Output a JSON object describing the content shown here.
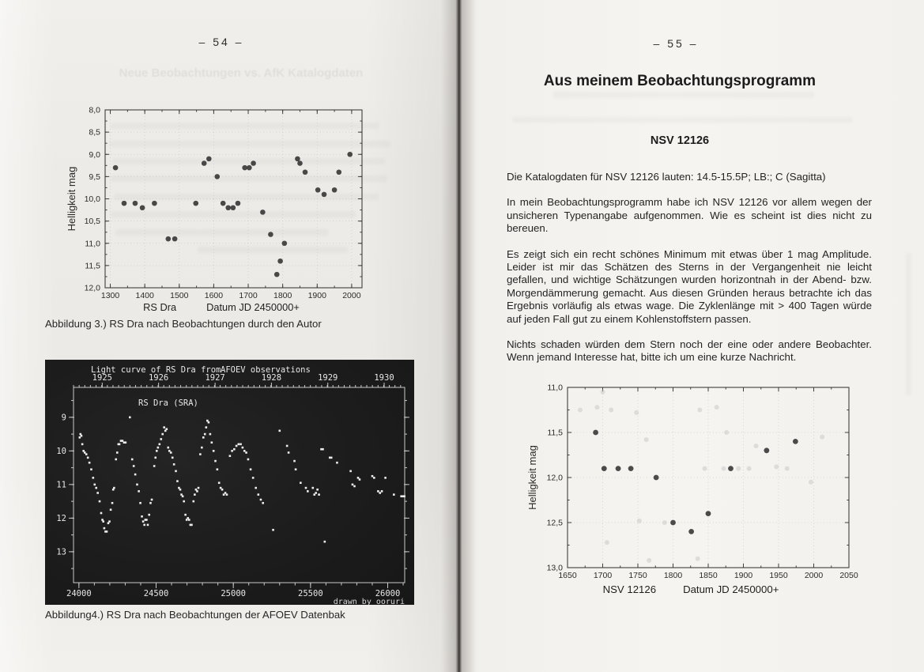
{
  "scan": {
    "paper_left_color": "#edebe7",
    "paper_right_color": "#f4f2ee",
    "ink_color": "#262626",
    "dark_chart_bg": "#1c1c1c"
  },
  "document": {
    "left_page": {
      "page_number": "– 54 –",
      "ghost_heading": "Neue Beobachtungen vs. AfK Katalogdaten",
      "figure3_caption": "Abbildung 3.) RS Dra nach Beobachtungen durch den Autor",
      "figure4_caption": "Abbildung4.) RS Dra nach Beobachtungen der AFOEV Datenbak"
    },
    "right_page": {
      "page_number": "– 55 –",
      "title": "Aus meinem Beobachtungsprogramm",
      "subtitle": "NSV 12126",
      "paragraphs": [
        "Die Katalogdaten für NSV 12126 lauten: 14.5-15.5P; LB:; C (Sagitta)",
        "In mein Beobachtungsprogramm habe ich NSV 12126 vor allem wegen der unsicheren Typenangabe aufgenommen. Wie es scheint ist dies nicht zu bereuen.",
        "Es zeigt sich ein recht schönes Minimum mit etwas über 1 mag Amplitude. Leider ist mir das Schätzen des Sterns in der Vergangenheit nie leicht gefallen, und wichtige Schätzungen wurden horizontnah in der Abend- bzw. Morgendämmerung gemacht. Aus diesen Gründen heraus betrachte ich das Ergebnis vorläufig als etwas wage. Die Zyklenlänge mit > 400 Tagen würde auf jeden Fall gut zu einem Kohlenstoffstern passen.",
        "Nichts schaden würden dem Stern noch der eine oder andere Beobachter. Wenn jemand Interesse hat, bitte ich um eine kurze Nachricht."
      ]
    }
  },
  "chart_data": [
    {
      "id": "fig3",
      "type": "scatter",
      "star": "RS Dra",
      "xlabel_left": "RS Dra",
      "xlabel_right": "Datum JD 2450000+",
      "ylabel": "Helligkeit mag",
      "xlim": [
        1285,
        2030
      ],
      "ylim": [
        8.0,
        12.0
      ],
      "y_inverted": true,
      "grid": "dotted",
      "xticks": [
        1300,
        1400,
        1500,
        1600,
        1700,
        1800,
        1900,
        2000
      ],
      "xtick_labels": [
        "1300",
        "1400",
        "1500",
        "1600",
        "1700",
        "1800",
        "1900",
        "2000"
      ],
      "yticks": [
        8.0,
        8.5,
        9.0,
        9.5,
        10.0,
        10.5,
        11.0,
        11.5,
        12.0
      ],
      "ytick_labels": [
        "8,0",
        "8,5",
        "9,0",
        "9,5",
        "10,0",
        "10,5",
        "11,0",
        "11,5",
        "12,0"
      ],
      "point_color": "#3a3a3a",
      "points": [
        [
          1315,
          9.3
        ],
        [
          1340,
          10.1
        ],
        [
          1372,
          10.1
        ],
        [
          1393,
          10.2
        ],
        [
          1428,
          10.1
        ],
        [
          1468,
          10.9
        ],
        [
          1487,
          10.9
        ],
        [
          1548,
          10.1
        ],
        [
          1572,
          9.2
        ],
        [
          1586,
          9.1
        ],
        [
          1610,
          9.5
        ],
        [
          1627,
          10.1
        ],
        [
          1642,
          10.2
        ],
        [
          1656,
          10.2
        ],
        [
          1670,
          10.1
        ],
        [
          1690,
          9.3
        ],
        [
          1703,
          9.3
        ],
        [
          1715,
          9.2
        ],
        [
          1742,
          10.3
        ],
        [
          1765,
          10.8
        ],
        [
          1783,
          11.7
        ],
        [
          1793,
          11.4
        ],
        [
          1805,
          11.0
        ],
        [
          1843,
          9.1
        ],
        [
          1850,
          9.2
        ],
        [
          1865,
          9.4
        ],
        [
          1902,
          9.8
        ],
        [
          1920,
          9.9
        ],
        [
          1950,
          9.8
        ],
        [
          1963,
          9.4
        ],
        [
          1995,
          9.0
        ]
      ]
    },
    {
      "id": "fig4",
      "type": "scatter",
      "theme": "dark",
      "title_parts": [
        "Light curve of RS Dra from",
        "AFOEV observations"
      ],
      "series_label": "RS Dra (SRA)",
      "credit": "drawn by ooruri",
      "xlim": [
        23965,
        26110
      ],
      "ylim": [
        8.11,
        13.92
      ],
      "y_inverted": true,
      "top_axis_years": [
        {
          "label": "1925",
          "jd": 24151
        },
        {
          "label": "1926",
          "jd": 24516
        },
        {
          "label": "1927",
          "jd": 24882
        },
        {
          "label": "1928",
          "jd": 25247
        },
        {
          "label": "1929",
          "jd": 25612
        },
        {
          "label": "1930",
          "jd": 25977
        }
      ],
      "xticks": [
        24000,
        24500,
        25000,
        25500,
        26000
      ],
      "xtick_labels": [
        "24000",
        "24500",
        "25000",
        "25500",
        "26000"
      ],
      "yticks": [
        9,
        10,
        11,
        12,
        13
      ],
      "ytick_labels": [
        "9",
        "10",
        "11",
        "12",
        "13"
      ],
      "point_color": "#ededed",
      "points": [
        [
          24005,
          9.6
        ],
        [
          24010,
          9.5
        ],
        [
          24016,
          9.55
        ],
        [
          24022,
          9.8
        ],
        [
          24030,
          10.0
        ],
        [
          24038,
          10.05
        ],
        [
          24048,
          10.1
        ],
        [
          24058,
          10.2
        ],
        [
          24068,
          10.35
        ],
        [
          24080,
          10.55
        ],
        [
          24092,
          10.8
        ],
        [
          24102,
          11.0
        ],
        [
          24112,
          11.1
        ],
        [
          24122,
          11.25
        ],
        [
          24134,
          11.5
        ],
        [
          24144,
          11.85
        ],
        [
          24152,
          12.05
        ],
        [
          24158,
          12.1
        ],
        [
          24164,
          12.3
        ],
        [
          24172,
          12.4
        ],
        [
          24180,
          12.4
        ],
        [
          24190,
          12.15
        ],
        [
          24198,
          12.1
        ],
        [
          24206,
          11.75
        ],
        [
          24216,
          11.55
        ],
        [
          24222,
          11.15
        ],
        [
          24228,
          11.1
        ],
        [
          24240,
          10.25
        ],
        [
          24248,
          10.05
        ],
        [
          24256,
          9.8
        ],
        [
          24262,
          9.8
        ],
        [
          24272,
          9.7
        ],
        [
          24282,
          9.7
        ],
        [
          24292,
          9.75
        ],
        [
          24302,
          9.75
        ],
        [
          24330,
          9.0
        ],
        [
          24345,
          10.25
        ],
        [
          24355,
          10.45
        ],
        [
          24365,
          10.7
        ],
        [
          24377,
          11.0
        ],
        [
          24388,
          11.2
        ],
        [
          24398,
          11.55
        ],
        [
          24408,
          11.95
        ],
        [
          24416,
          12.1
        ],
        [
          24424,
          12.2
        ],
        [
          24430,
          12.05
        ],
        [
          24438,
          12.05
        ],
        [
          24446,
          12.2
        ],
        [
          24455,
          11.9
        ],
        [
          24464,
          11.55
        ],
        [
          24472,
          11.45
        ],
        [
          24488,
          10.45
        ],
        [
          24496,
          10.2
        ],
        [
          24504,
          10.0
        ],
        [
          24512,
          9.9
        ],
        [
          24522,
          9.8
        ],
        [
          24532,
          9.65
        ],
        [
          24542,
          9.5
        ],
        [
          24552,
          9.3
        ],
        [
          24560,
          9.4
        ],
        [
          24568,
          9.35
        ],
        [
          24578,
          9.9
        ],
        [
          24586,
          10.0
        ],
        [
          24596,
          10.05
        ],
        [
          24606,
          10.2
        ],
        [
          24616,
          10.4
        ],
        [
          24628,
          10.6
        ],
        [
          24638,
          10.9
        ],
        [
          24648,
          11.1
        ],
        [
          24656,
          11.15
        ],
        [
          24664,
          11.3
        ],
        [
          24672,
          11.35
        ],
        [
          24680,
          11.5
        ],
        [
          24690,
          11.9
        ],
        [
          24698,
          12.05
        ],
        [
          24706,
          12.0
        ],
        [
          24714,
          12.05
        ],
        [
          24722,
          12.2
        ],
        [
          24730,
          12.2
        ],
        [
          24742,
          11.5
        ],
        [
          24750,
          11.3
        ],
        [
          24758,
          11.15
        ],
        [
          24766,
          11.2
        ],
        [
          24774,
          11.1
        ],
        [
          24786,
          10.1
        ],
        [
          24796,
          9.9
        ],
        [
          24806,
          9.6
        ],
        [
          24816,
          9.5
        ],
        [
          24824,
          9.3
        ],
        [
          24832,
          9.1
        ],
        [
          24840,
          9.15
        ],
        [
          24850,
          9.5
        ],
        [
          24860,
          9.75
        ],
        [
          24872,
          10.0
        ],
        [
          24884,
          10.3
        ],
        [
          24896,
          10.55
        ],
        [
          24908,
          10.95
        ],
        [
          24918,
          11.1
        ],
        [
          24928,
          11.15
        ],
        [
          24938,
          11.3
        ],
        [
          24948,
          11.25
        ],
        [
          24958,
          11.3
        ],
        [
          24978,
          10.15
        ],
        [
          24992,
          10.0
        ],
        [
          25006,
          9.95
        ],
        [
          25020,
          9.85
        ],
        [
          25034,
          9.8
        ],
        [
          25048,
          9.8
        ],
        [
          25060,
          9.9
        ],
        [
          25072,
          10.0
        ],
        [
          25084,
          10.05
        ],
        [
          25096,
          10.25
        ],
        [
          25112,
          10.55
        ],
        [
          25128,
          10.8
        ],
        [
          25146,
          11.1
        ],
        [
          25162,
          11.3
        ],
        [
          25178,
          11.45
        ],
        [
          25192,
          11.55
        ],
        [
          25258,
          12.35
        ],
        [
          25300,
          9.4
        ],
        [
          25348,
          9.85
        ],
        [
          25358,
          10.05
        ],
        [
          25396,
          10.3
        ],
        [
          25404,
          10.55
        ],
        [
          25436,
          10.95
        ],
        [
          25470,
          11.1
        ],
        [
          25482,
          11.2
        ],
        [
          25515,
          11.1
        ],
        [
          25525,
          11.3
        ],
        [
          25535,
          11.25
        ],
        [
          25545,
          11.15
        ],
        [
          25555,
          11.3
        ],
        [
          25570,
          9.95
        ],
        [
          25580,
          9.95
        ],
        [
          25592,
          12.7
        ],
        [
          25625,
          10.2
        ],
        [
          25635,
          10.2
        ],
        [
          25672,
          10.35
        ],
        [
          25760,
          10.6
        ],
        [
          25772,
          11.0
        ],
        [
          25785,
          11.05
        ],
        [
          25808,
          10.8
        ],
        [
          25818,
          10.85
        ],
        [
          25900,
          10.75
        ],
        [
          25912,
          10.8
        ],
        [
          25938,
          11.2
        ],
        [
          25950,
          11.25
        ],
        [
          25962,
          11.2
        ],
        [
          25985,
          10.8
        ],
        [
          26040,
          11.3
        ],
        [
          26088,
          11.35
        ],
        [
          26098,
          11.35
        ],
        [
          26108,
          11.35
        ]
      ]
    },
    {
      "id": "nsv",
      "type": "scatter",
      "star": "NSV 12126",
      "caption_left": "NSV 12126",
      "caption_right": "Datum JD 2450000+",
      "ylabel": "Helligkeit mag",
      "xlim": [
        1650,
        2050
      ],
      "ylim": [
        11.0,
        13.0
      ],
      "y_inverted": true,
      "grid": "dotted",
      "xticks": [
        1650,
        1700,
        1750,
        1800,
        1850,
        1900,
        1950,
        2000,
        2050
      ],
      "xtick_labels": [
        "1650",
        "1700",
        "1750",
        "1800",
        "1850",
        "1900",
        "1950",
        "2000",
        "2050"
      ],
      "yticks": [
        11.0,
        11.5,
        12.0,
        12.5,
        13.0
      ],
      "ytick_labels": [
        "11,0",
        "11,5",
        "12,0",
        "12,5",
        "13,0"
      ],
      "point_color": "#3c3c3c",
      "ghost_color": "#c6c6c6",
      "points": [
        [
          1690,
          11.5
        ],
        [
          1702,
          11.9
        ],
        [
          1722,
          11.9
        ],
        [
          1740,
          11.9
        ],
        [
          1776,
          12.0
        ],
        [
          1800,
          12.5
        ],
        [
          1826,
          12.6
        ],
        [
          1850,
          12.4
        ],
        [
          1882,
          11.9
        ],
        [
          1933,
          11.7
        ],
        [
          1974,
          11.6
        ]
      ],
      "ghost_points": [
        [
          1668,
          11.25
        ],
        [
          1692,
          11.22
        ],
        [
          1712,
          11.25
        ],
        [
          1700,
          11.05
        ],
        [
          1748,
          11.28
        ],
        [
          1762,
          11.58
        ],
        [
          1838,
          11.25
        ],
        [
          1862,
          11.22
        ],
        [
          1876,
          11.5
        ],
        [
          1918,
          11.65
        ],
        [
          1845,
          11.9
        ],
        [
          1872,
          11.9
        ],
        [
          1893,
          11.9
        ],
        [
          1908,
          11.9
        ],
        [
          1947,
          11.88
        ],
        [
          1962,
          11.9
        ],
        [
          1996,
          12.05
        ],
        [
          1752,
          12.48
        ],
        [
          1788,
          12.5
        ],
        [
          1706,
          12.72
        ],
        [
          1766,
          12.92
        ],
        [
          2012,
          11.55
        ],
        [
          1835,
          12.9
        ]
      ]
    }
  ]
}
